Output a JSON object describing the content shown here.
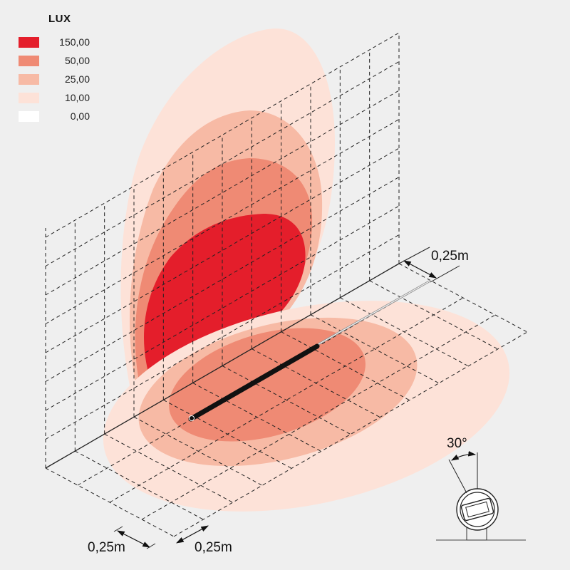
{
  "legend": {
    "title": "LUX",
    "items": [
      {
        "label": "150,00",
        "color": "#e41e2b"
      },
      {
        "label": "50,00",
        "color": "#ef8a74"
      },
      {
        "label": "25,00",
        "color": "#f7baa5"
      },
      {
        "label": "10,00",
        "color": "#fde2d8"
      },
      {
        "label": "0,00",
        "color": "#ffffff"
      }
    ]
  },
  "dimensions": {
    "wall_depth": "0,25m",
    "floor_x": "0,25m",
    "floor_y": "0,25m",
    "tilt_angle": "30°"
  },
  "colors": {
    "background": "#efefef",
    "fixture": "#111111",
    "grid": "#222222"
  }
}
